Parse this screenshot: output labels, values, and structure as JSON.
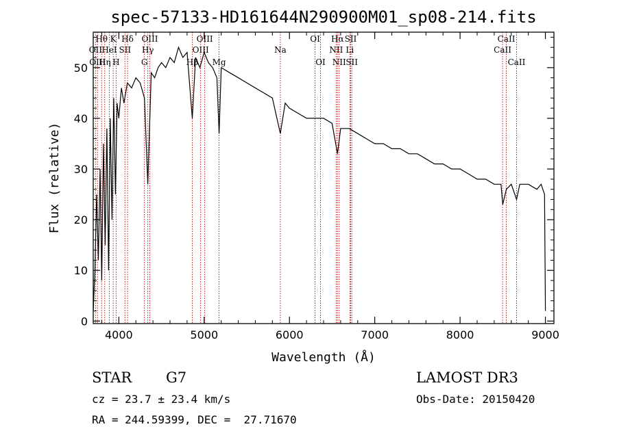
{
  "chart_data": {
    "type": "line",
    "title": "spec-57133-HD161644N290900M01_sp08-214.fits",
    "xlabel": "Wavelength (Å)",
    "ylabel": "Flux (relative)",
    "xlim": [
      3700,
      9100
    ],
    "ylim": [
      -0.5,
      57
    ],
    "x_ticks": [
      4000,
      5000,
      6000,
      7000,
      8000,
      9000
    ],
    "x_tick_labels": [
      "4000",
      "5000",
      "6000",
      "7000",
      "8000",
      "9000"
    ],
    "y_ticks": [
      0,
      10,
      20,
      30,
      40,
      50
    ],
    "y_tick_labels": [
      "0",
      "10",
      "20",
      "30",
      "40",
      "50"
    ],
    "series": [
      {
        "name": "spectrum",
        "color": "#000000",
        "x": [
          3700,
          3720,
          3740,
          3760,
          3780,
          3800,
          3820,
          3840,
          3860,
          3880,
          3900,
          3920,
          3940,
          3960,
          3980,
          4000,
          4030,
          4060,
          4100,
          4150,
          4200,
          4250,
          4300,
          4340,
          4380,
          4420,
          4460,
          4500,
          4550,
          4600,
          4650,
          4700,
          4750,
          4800,
          4861,
          4900,
          4950,
          5000,
          5050,
          5100,
          5150,
          5175,
          5200,
          5300,
          5400,
          5500,
          5600,
          5700,
          5800,
          5893,
          5950,
          6000,
          6100,
          6200,
          6300,
          6400,
          6500,
          6563,
          6600,
          6700,
          6800,
          6900,
          7000,
          7100,
          7200,
          7300,
          7400,
          7500,
          7600,
          7700,
          7800,
          7900,
          8000,
          8100,
          8200,
          8300,
          8400,
          8480,
          8500,
          8542,
          8600,
          8662,
          8700,
          8800,
          8900,
          8950,
          8990,
          9000
        ],
        "y": [
          2,
          10,
          25,
          12,
          30,
          8,
          35,
          15,
          38,
          10,
          40,
          20,
          44,
          25,
          43,
          40,
          46,
          43,
          47,
          46,
          48,
          47,
          44,
          27,
          49,
          48,
          50,
          51,
          50,
          52,
          51,
          54,
          52,
          53,
          40,
          52,
          50,
          53,
          51,
          50,
          48,
          37,
          50,
          49,
          48,
          47,
          46,
          45,
          44,
          37,
          43,
          42,
          41,
          40,
          40,
          40,
          39,
          33,
          38,
          38,
          37,
          36,
          35,
          35,
          34,
          34,
          33,
          33,
          32,
          31,
          31,
          30,
          30,
          29,
          28,
          28,
          27,
          27,
          23,
          26,
          27,
          24,
          27,
          27,
          26,
          27,
          25,
          2
        ]
      }
    ],
    "spectral_lines": [
      {
        "wl": 3727,
        "label": "OII",
        "row": 2
      },
      {
        "wl": 3750,
        "label": "OIII",
        "row": 3
      },
      {
        "wl": 3798,
        "label": "Hθ",
        "row": 1
      },
      {
        "wl": 3835,
        "label": "Hη",
        "row": 3
      },
      {
        "wl": 3889,
        "label": "HeI",
        "row": 2
      },
      {
        "wl": 3934,
        "label": "K",
        "row": 1
      },
      {
        "wl": 3968,
        "label": "H",
        "row": 3
      },
      {
        "wl": 4072,
        "label": "SII",
        "row": 2
      },
      {
        "wl": 4102,
        "label": "Hδ",
        "row": 1
      },
      {
        "wl": 4300,
        "label": "G",
        "row": 3
      },
      {
        "wl": 4340,
        "label": "Hγ",
        "row": 2
      },
      {
        "wl": 4363,
        "label": "OIII",
        "row": 1
      },
      {
        "wl": 4861,
        "label": "Hβ",
        "row": 3
      },
      {
        "wl": 4959,
        "label": "OIII",
        "row": 2
      },
      {
        "wl": 5007,
        "label": "OIII",
        "row": 1
      },
      {
        "wl": 5175,
        "label": "Mg",
        "row": 3
      },
      {
        "wl": 5893,
        "label": "Na",
        "row": 2
      },
      {
        "wl": 6300,
        "label": "OI",
        "row": 1
      },
      {
        "wl": 6364,
        "label": "OI",
        "row": 3
      },
      {
        "wl": 6548,
        "label": "NII",
        "row": 2
      },
      {
        "wl": 6563,
        "label": "Hα",
        "row": 1
      },
      {
        "wl": 6583,
        "label": "NII",
        "row": 3
      },
      {
        "wl": 6708,
        "label": "Li",
        "row": 2
      },
      {
        "wl": 6717,
        "label": "SII",
        "row": 1
      },
      {
        "wl": 6731,
        "label": "SII",
        "row": 3
      },
      {
        "wl": 8498,
        "label": "CaII",
        "row": 2
      },
      {
        "wl": 8542,
        "label": "CaII",
        "row": 1
      },
      {
        "wl": 8662,
        "label": "CaII",
        "row": 3
      }
    ],
    "line_color": "#b00000"
  },
  "info": {
    "class_label": "STAR",
    "subclass_label": "G7",
    "survey_label": "LAMOST DR3",
    "redshift_text": "cz = 23.7 ± 23.4 km/s",
    "obsdate_text": "Obs-Date: 20150420",
    "coords_text": "RA = 244.59399, DEC =  27.71670"
  }
}
